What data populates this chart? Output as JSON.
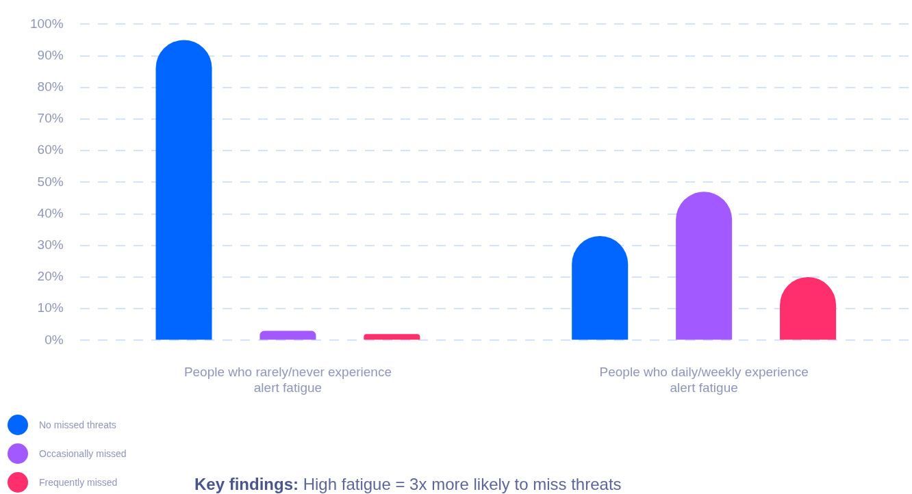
{
  "chart_data": {
    "type": "bar",
    "categories": [
      "People who rarely/never experience alert fatigue",
      "People who daily/weekly experience alert fatigue"
    ],
    "series": [
      {
        "name": "No missed threats",
        "color": "#0066ff",
        "values": [
          95,
          33
        ]
      },
      {
        "name": "Occasionally missed",
        "color": "#a259ff",
        "values": [
          3,
          47
        ]
      },
      {
        "name": "Frequently missed",
        "color": "#ff2e6c",
        "values": [
          2,
          20
        ]
      }
    ],
    "ylim": [
      0,
      100
    ],
    "yticks": [
      {
        "value": 0,
        "label": "0%"
      },
      {
        "value": 10,
        "label": "10%"
      },
      {
        "value": 20,
        "label": "20%"
      },
      {
        "value": 30,
        "label": "30%"
      },
      {
        "value": 40,
        "label": "40%"
      },
      {
        "value": 50,
        "label": "50%"
      },
      {
        "value": 60,
        "label": "60%"
      },
      {
        "value": 70,
        "label": "70%"
      },
      {
        "value": 80,
        "label": "80%"
      },
      {
        "value": 90,
        "label": "90%"
      },
      {
        "value": 100,
        "label": "100%"
      }
    ],
    "grid": "y",
    "legend": "bottom left",
    "annotations": [
      "Key findings: High fatigue = 3x more likely to miss threats"
    ]
  }
}
